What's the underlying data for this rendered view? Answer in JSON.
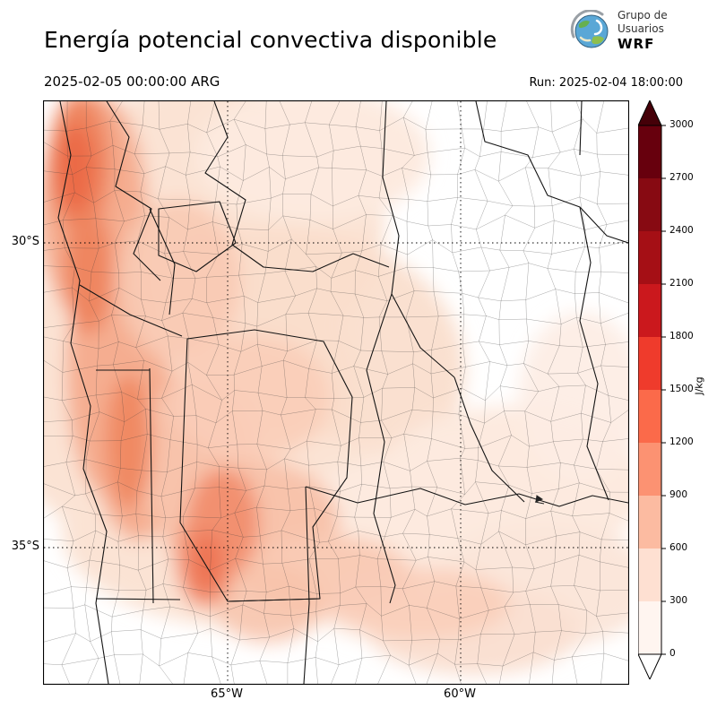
{
  "header": {
    "title": "Energía potencial convectiva disponible",
    "valid_time": "2025-02-05 00:00:00 ARG",
    "run_label": "Run: 2025-02-04 18:00:00"
  },
  "logo": {
    "org_line1": "Grupo de",
    "org_line2": "Usuarios",
    "org_line3": "WRF",
    "globe_icon": "earth-globe-with-swirl"
  },
  "map": {
    "y_ticks": [
      "30°S",
      "35°S"
    ],
    "x_ticks": [
      "65°W",
      "60°W"
    ]
  },
  "colorbar": {
    "unit": "J/kg",
    "tick_labels": [
      "3000",
      "2700",
      "2400",
      "2100",
      "1800",
      "1500",
      "1200",
      "900",
      "600",
      "300",
      "0"
    ],
    "segment_colors_top_to_bottom": [
      "#67000d",
      "#870a12",
      "#a50f15",
      "#cb181d",
      "#ef3b2c",
      "#fb6a4a",
      "#fc9272",
      "#fcbba1",
      "#fee0d2",
      "#fff5f0"
    ],
    "over_color": "#450008",
    "under_color": "#ffffff"
  }
}
